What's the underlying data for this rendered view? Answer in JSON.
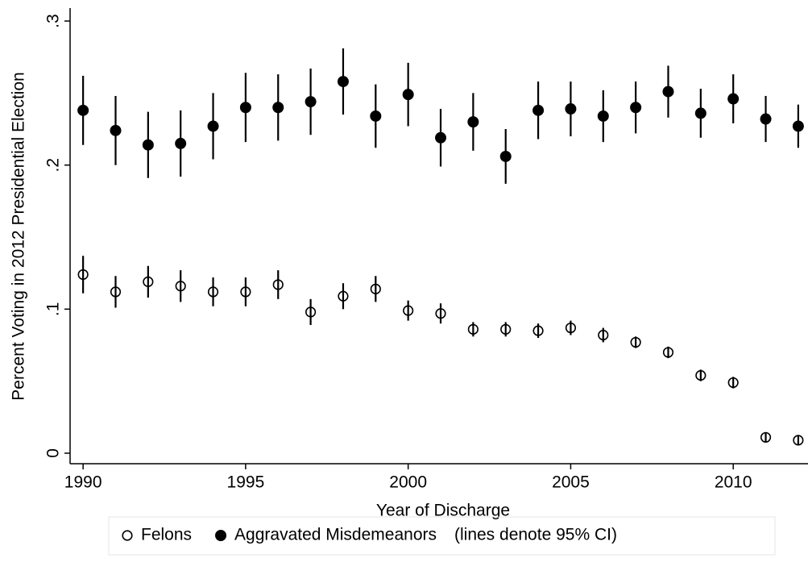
{
  "chart_data": {
    "type": "scatter",
    "x_label": "Year of Discharge",
    "y_label": "Percent Voting in 2012 Presidential Election",
    "legend_note": "(lines denote 95% CI)",
    "x": [
      1990,
      1991,
      1992,
      1993,
      1994,
      1995,
      1996,
      1997,
      1998,
      1999,
      2000,
      2001,
      2002,
      2003,
      2004,
      2005,
      2006,
      2007,
      2008,
      2009,
      2010,
      2011,
      2012
    ],
    "series": [
      {
        "name": "Felons",
        "marker": "hollow",
        "color": "#000000",
        "values": [
          0.124,
          0.112,
          0.119,
          0.116,
          0.112,
          0.112,
          0.117,
          0.098,
          0.109,
          0.114,
          0.099,
          0.097,
          0.086,
          0.086,
          0.085,
          0.087,
          0.082,
          0.077,
          0.07,
          0.054,
          0.049,
          0.011,
          0.009
        ],
        "errors": [
          0.013,
          0.011,
          0.011,
          0.011,
          0.01,
          0.01,
          0.01,
          0.009,
          0.009,
          0.009,
          0.007,
          0.007,
          0.005,
          0.005,
          0.005,
          0.005,
          0.005,
          0.004,
          0.004,
          0.004,
          0.004,
          0.003,
          0.003
        ]
      },
      {
        "name": "Aggravated Misdemeanors",
        "marker": "filled",
        "color": "#000000",
        "values": [
          0.238,
          0.224,
          0.214,
          0.215,
          0.227,
          0.24,
          0.24,
          0.244,
          0.258,
          0.234,
          0.249,
          0.219,
          0.23,
          0.206,
          0.238,
          0.239,
          0.234,
          0.24,
          0.251,
          0.236,
          0.246,
          0.232,
          0.227
        ],
        "errors": [
          0.024,
          0.024,
          0.023,
          0.023,
          0.023,
          0.024,
          0.023,
          0.023,
          0.023,
          0.022,
          0.022,
          0.02,
          0.02,
          0.019,
          0.02,
          0.019,
          0.018,
          0.018,
          0.018,
          0.017,
          0.017,
          0.016,
          0.015
        ]
      }
    ],
    "xlim": [
      1989.6,
      2012.3
    ],
    "ylim": [
      -0.0073,
      0.309
    ],
    "xticks": [
      1990,
      1995,
      2000,
      2005,
      2010
    ],
    "yticks": [
      {
        "value": 0,
        "label": "0"
      },
      {
        "value": 0.1,
        "label": ".1"
      },
      {
        "value": 0.2,
        "label": ".2"
      },
      {
        "value": 0.3,
        "label": ".3"
      }
    ],
    "grid": false
  }
}
